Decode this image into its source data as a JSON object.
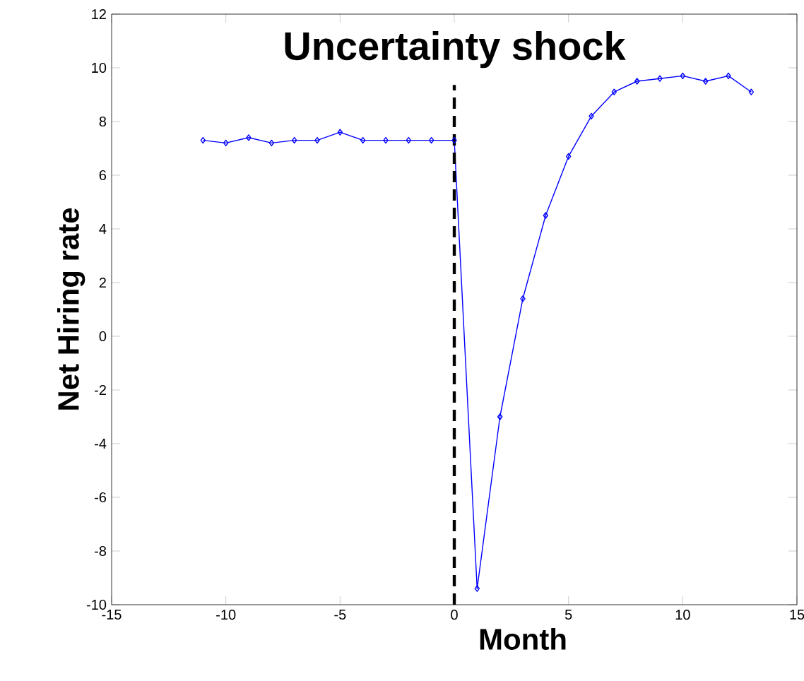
{
  "chart_data": {
    "type": "line",
    "xlabel": "Month",
    "ylabel": "Net Hiring rate",
    "annotations": [
      "Uncertainty shock"
    ],
    "x": [
      -11,
      -10,
      -9,
      -8,
      -7,
      -6,
      -5,
      -4,
      -3,
      -2,
      -1,
      0,
      1,
      2,
      3,
      4,
      5,
      6,
      7,
      8,
      9,
      10,
      11,
      12,
      13
    ],
    "series": [
      {
        "color": "#0000ff",
        "values": [
          7.3,
          7.2,
          7.4,
          7.2,
          7.3,
          7.3,
          7.6,
          7.3,
          7.3,
          7.3,
          7.3,
          7.3,
          -9.4,
          -3.0,
          1.4,
          4.5,
          6.7,
          8.2,
          9.1,
          9.5,
          9.6,
          9.7,
          9.5,
          9.7,
          9.1
        ]
      }
    ],
    "xlim": [
      -15,
      15
    ],
    "ylim": [
      -10,
      12
    ],
    "xticks": [
      -15,
      -10,
      -5,
      0,
      5,
      10,
      15
    ],
    "yticks": [
      -10,
      -8,
      -6,
      -4,
      -2,
      0,
      2,
      4,
      6,
      8,
      10,
      12
    ],
    "ref_lines": [
      {
        "axis": "x",
        "value": 0,
        "color": "#000000",
        "line_style": "dashed"
      }
    ],
    "marker": "diamond",
    "line_style": "solid",
    "grid": false
  }
}
